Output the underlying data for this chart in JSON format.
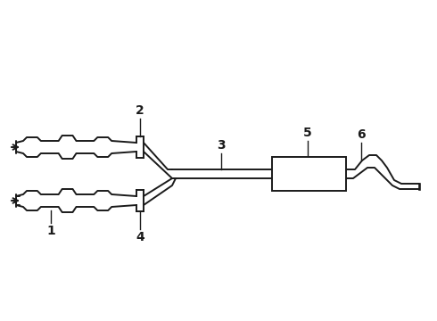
{
  "bg_color": "#ffffff",
  "line_color": "#1a1a1a",
  "lw_line": 1.4,
  "label_fontsize": 10,
  "figsize": [
    4.9,
    3.6
  ],
  "dpi": 100,
  "xlim": [
    0,
    490
  ],
  "ylim": [
    0,
    360
  ]
}
